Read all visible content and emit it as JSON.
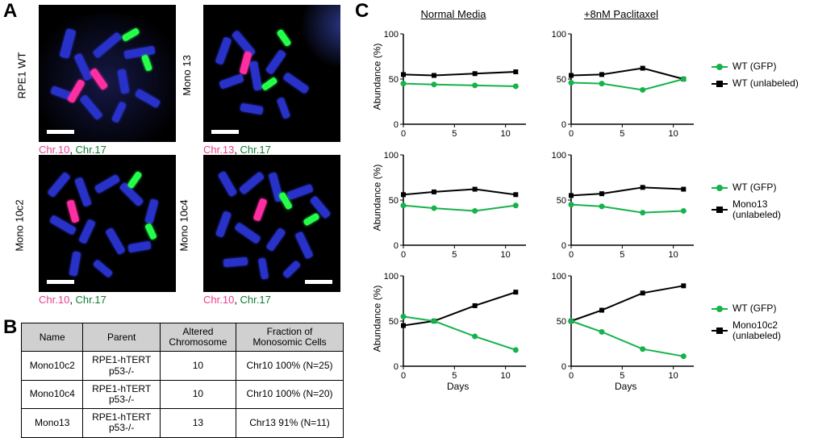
{
  "panels": {
    "A": "A",
    "B": "B",
    "C": "C"
  },
  "micrographs": {
    "rpe1wt": {
      "label": "RPE1 WT",
      "chrA": "Chr.10",
      "chrB": "Chr.17"
    },
    "mono13": {
      "label": "Mono 13",
      "chrA": "Chr.13",
      "chrB": "Chr.17"
    },
    "mono10c2": {
      "label": "Mono 10c2",
      "chrA": "Chr.10",
      "chrB": "Chr.17"
    },
    "mono10c4": {
      "label": "Mono 10c4",
      "chrA": "Chr.10",
      "chrB": "Chr.17"
    }
  },
  "tableB": {
    "headers": [
      "Name",
      "Parent",
      "Altered\nChromosome",
      "Fraction of\nMonosomic Cells"
    ],
    "rows": [
      [
        "Mono10c2",
        "RPE1-hTERT\np53-/-",
        "10",
        "Chr10 100% (N=25)"
      ],
      [
        "Mono10c4",
        "RPE1-hTERT\np53-/-",
        "10",
        "Chr10 100% (N=20)"
      ],
      [
        "Mono13",
        "RPE1-hTERT\np53-/-",
        "13",
        "Chr13 91% (N=11)"
      ]
    ]
  },
  "chartC": {
    "col_headers": [
      "Normal Media",
      "+8nM Paclitaxel"
    ],
    "y_label": "Abundance (%)",
    "x_label": "Days",
    "ylim": [
      0,
      100
    ],
    "ytick_step": 50,
    "xlim": [
      0,
      12
    ],
    "xticks": [
      0,
      5,
      10
    ],
    "colors": {
      "gfp": "#16b24c",
      "unlabeled": "#000000",
      "axis": "#000000",
      "bg": "#ffffff"
    },
    "line_width": 2,
    "marker_size": 5,
    "label_fontsize": 12,
    "rows": [
      {
        "legend": [
          {
            "key": "gfp",
            "label": "WT (GFP)",
            "marker": "circle"
          },
          {
            "key": "unlabeled",
            "label": "WT (unlabeled)",
            "marker": "square"
          }
        ],
        "normal": {
          "gfp": {
            "x": [
              0,
              3,
              7,
              11
            ],
            "y": [
              45,
              44,
              43,
              42
            ]
          },
          "unlabeled": {
            "x": [
              0,
              3,
              7,
              11
            ],
            "y": [
              55,
              54,
              56,
              58
            ]
          }
        },
        "pac": {
          "gfp": {
            "x": [
              0,
              3,
              7,
              11
            ],
            "y": [
              46,
              45,
              38,
              50
            ]
          },
          "unlabeled": {
            "x": [
              0,
              3,
              7,
              11
            ],
            "y": [
              54,
              55,
              62,
              50
            ]
          }
        }
      },
      {
        "legend": [
          {
            "key": "gfp",
            "label": "WT (GFP)",
            "marker": "circle"
          },
          {
            "key": "unlabeled",
            "label": "Mono13\n(unlabeled)",
            "marker": "square"
          }
        ],
        "normal": {
          "gfp": {
            "x": [
              0,
              3,
              7,
              11
            ],
            "y": [
              44,
              41,
              38,
              44
            ]
          },
          "unlabeled": {
            "x": [
              0,
              3,
              7,
              11
            ],
            "y": [
              56,
              59,
              62,
              56
            ]
          }
        },
        "pac": {
          "gfp": {
            "x": [
              0,
              3,
              7,
              11
            ],
            "y": [
              45,
              43,
              36,
              38
            ]
          },
          "unlabeled": {
            "x": [
              0,
              3,
              7,
              11
            ],
            "y": [
              55,
              57,
              64,
              62
            ]
          }
        }
      },
      {
        "legend": [
          {
            "key": "gfp",
            "label": "WT (GFP)",
            "marker": "circle"
          },
          {
            "key": "unlabeled",
            "label": "Mono10c2\n(unlabeled)",
            "marker": "square"
          }
        ],
        "normal": {
          "gfp": {
            "x": [
              0,
              3,
              7,
              11
            ],
            "y": [
              55,
              50,
              33,
              18
            ]
          },
          "unlabeled": {
            "x": [
              0,
              3,
              7,
              11
            ],
            "y": [
              45,
              50,
              67,
              82
            ]
          }
        },
        "pac": {
          "gfp": {
            "x": [
              0,
              3,
              7,
              11
            ],
            "y": [
              50,
              38,
              19,
              11
            ]
          },
          "unlabeled": {
            "x": [
              0,
              3,
              7,
              11
            ],
            "y": [
              50,
              62,
              81,
              89
            ]
          }
        }
      }
    ]
  }
}
